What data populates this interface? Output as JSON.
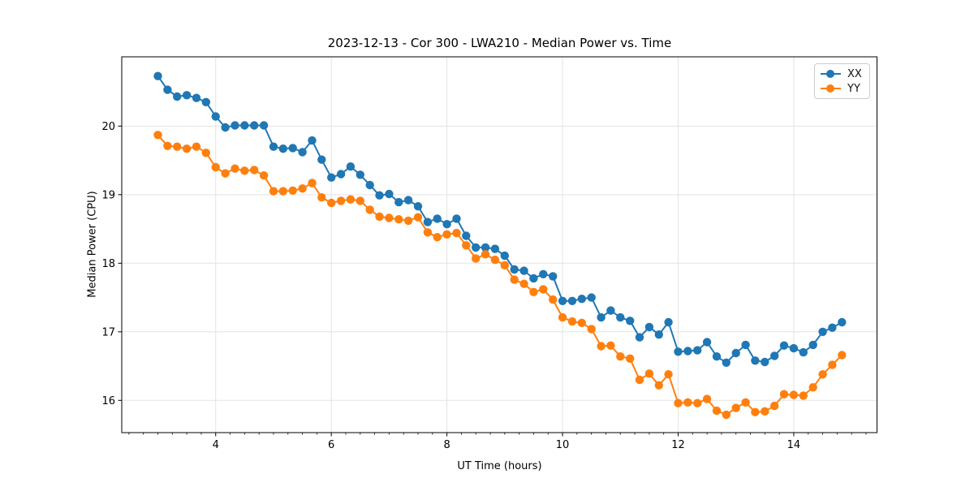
{
  "figure": {
    "title": "2023-12-13 - Cor 300 - LWA210 - Median Power vs. Time",
    "xlabel": "UT Time (hours)",
    "ylabel": "Median Power (CPU)"
  },
  "chart_data": {
    "type": "line",
    "title": "2023-12-13 - Cor 300 - LWA210 - Median Power vs. Time",
    "xlabel": "UT Time (hours)",
    "ylabel": "Median Power (CPU)",
    "grid": true,
    "legend_position": "upper right",
    "xlim": [
      2.375,
      15.44
    ],
    "ylim": [
      15.53,
      21.01
    ],
    "x_ticks": [
      4,
      6,
      8,
      10,
      12,
      14
    ],
    "y_ticks": [
      16,
      17,
      18,
      19,
      20
    ],
    "x_minor_tick_step": 0.25,
    "marker": "circle",
    "x": [
      3,
      3.167,
      3.333,
      3.5,
      3.667,
      3.833,
      4,
      4.167,
      4.333,
      4.5,
      4.667,
      4.833,
      5,
      5.167,
      5.333,
      5.5,
      5.667,
      5.833,
      6,
      6.167,
      6.333,
      6.5,
      6.667,
      6.833,
      7,
      7.167,
      7.333,
      7.5,
      7.667,
      7.833,
      8,
      8.167,
      8.333,
      8.5,
      8.667,
      8.833,
      9,
      9.167,
      9.333,
      9.5,
      9.667,
      9.833,
      10,
      10.167,
      10.333,
      10.5,
      10.667,
      10.833,
      11,
      11.167,
      11.333,
      11.5,
      11.667,
      11.833,
      12,
      12.167,
      12.333,
      12.5,
      12.667,
      12.833,
      13,
      13.167,
      13.333,
      13.5,
      13.667,
      13.833,
      14,
      14.167,
      14.333,
      14.5,
      14.667,
      14.833
    ],
    "series": [
      {
        "name": "XX",
        "color": "#1f77b4",
        "values": [
          20.73,
          20.53,
          20.43,
          20.45,
          20.41,
          20.35,
          20.14,
          19.98,
          20.01,
          20.01,
          20.01,
          20.01,
          19.7,
          19.67,
          19.68,
          19.62,
          19.79,
          19.51,
          19.25,
          19.3,
          19.41,
          19.29,
          19.14,
          18.99,
          19.01,
          18.89,
          18.92,
          18.83,
          18.6,
          18.65,
          18.57,
          18.65,
          18.4,
          18.23,
          18.23,
          18.21,
          18.11,
          17.91,
          17.89,
          17.78,
          17.84,
          17.81,
          17.45,
          17.45,
          17.48,
          17.5,
          17.21,
          17.31,
          17.21,
          17.16,
          16.92,
          17.07,
          16.96,
          17.14,
          16.71,
          16.72,
          16.73,
          16.85,
          16.64,
          16.55,
          16.69,
          16.81,
          16.58,
          16.56,
          16.65,
          16.8,
          16.76,
          16.7,
          16.81,
          17.0,
          17.06,
          17.14
        ]
      },
      {
        "name": "YY",
        "color": "#ff7f0e",
        "values": [
          19.87,
          19.71,
          19.7,
          19.67,
          19.7,
          19.61,
          19.4,
          19.31,
          19.38,
          19.35,
          19.36,
          19.28,
          19.05,
          19.05,
          19.06,
          19.09,
          19.17,
          18.96,
          18.88,
          18.91,
          18.93,
          18.91,
          18.78,
          18.68,
          18.66,
          18.64,
          18.62,
          18.67,
          18.45,
          18.38,
          18.42,
          18.44,
          18.26,
          18.07,
          18.13,
          18.05,
          17.97,
          17.76,
          17.7,
          17.58,
          17.62,
          17.47,
          17.21,
          17.15,
          17.13,
          17.04,
          16.79,
          16.8,
          16.64,
          16.61,
          16.3,
          16.39,
          16.22,
          16.38,
          15.96,
          15.97,
          15.96,
          16.02,
          15.85,
          15.79,
          15.89,
          15.97,
          15.83,
          15.84,
          15.92,
          16.09,
          16.08,
          16.07,
          16.19,
          16.38,
          16.52,
          16.66
        ]
      }
    ]
  }
}
